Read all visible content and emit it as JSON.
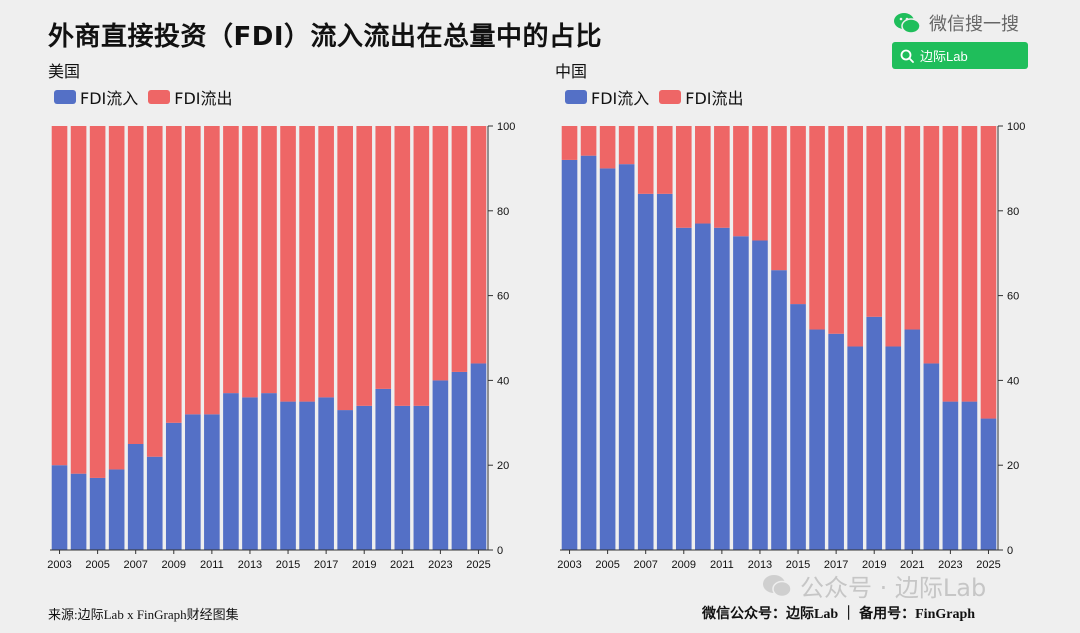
{
  "page": {
    "title": "外商直接投资（FDI）流入流出在总量中的占比",
    "wechat_label": "微信搜一搜",
    "search_label": "边际Lab",
    "watermark": "公众号 · 边际Lab",
    "footer_left": "来源:边际Lab x FinGraph财经图集",
    "footer_right": "微信公众号：边际Lab ｜ 备用号：FinGraph",
    "colors": {
      "inflow": "#5470c6",
      "outflow": "#ee6666"
    },
    "icons": [
      "wechat-icon",
      "search-icon",
      "watermark-logo-icon"
    ]
  },
  "chart_data": [
    {
      "type": "bar",
      "stacked": true,
      "title": "美国",
      "categories": [
        "2003",
        "2004",
        "2005",
        "2006",
        "2007",
        "2008",
        "2009",
        "2010",
        "2011",
        "2012",
        "2013",
        "2014",
        "2015",
        "2016",
        "2017",
        "2018",
        "2019",
        "2020",
        "2021",
        "2022",
        "2023",
        "2024",
        "2025"
      ],
      "x_tick_labels": [
        "2003",
        "2005",
        "2007",
        "2009",
        "2011",
        "2013",
        "2015",
        "2017",
        "2019",
        "2021",
        "2023",
        "2025"
      ],
      "series": [
        {
          "name": "FDI流入",
          "color": "#5470c6",
          "values": [
            20,
            18,
            17,
            19,
            25,
            22,
            30,
            32,
            32,
            37,
            36,
            37,
            35,
            35,
            36,
            33,
            34,
            38,
            34,
            34,
            40,
            42,
            44
          ]
        },
        {
          "name": "FDI流出",
          "color": "#ee6666",
          "values": [
            80,
            82,
            83,
            81,
            75,
            78,
            70,
            68,
            68,
            63,
            64,
            63,
            65,
            65,
            64,
            67,
            66,
            62,
            66,
            66,
            60,
            58,
            56
          ]
        }
      ],
      "ylim": [
        0,
        100
      ],
      "y_ticks": [
        0,
        20,
        40,
        60,
        80,
        100
      ],
      "y_axis_side": "right",
      "legend": "top-left"
    },
    {
      "type": "bar",
      "stacked": true,
      "title": "中国",
      "categories": [
        "2003",
        "2004",
        "2005",
        "2006",
        "2007",
        "2008",
        "2009",
        "2010",
        "2011",
        "2012",
        "2013",
        "2014",
        "2015",
        "2016",
        "2017",
        "2018",
        "2019",
        "2020",
        "2021",
        "2022",
        "2023",
        "2024",
        "2025"
      ],
      "x_tick_labels": [
        "2003",
        "2005",
        "2007",
        "2009",
        "2011",
        "2013",
        "2015",
        "2017",
        "2019",
        "2021",
        "2023",
        "2025"
      ],
      "series": [
        {
          "name": "FDI流入",
          "color": "#5470c6",
          "values": [
            92,
            93,
            90,
            91,
            84,
            84,
            76,
            77,
            76,
            74,
            73,
            66,
            58,
            52,
            51,
            48,
            55,
            48,
            52,
            44,
            35,
            35,
            31
          ]
        },
        {
          "name": "FDI流出",
          "color": "#ee6666",
          "values": [
            8,
            7,
            10,
            9,
            16,
            16,
            24,
            23,
            24,
            26,
            27,
            34,
            42,
            48,
            49,
            52,
            45,
            52,
            48,
            56,
            65,
            65,
            69
          ]
        }
      ],
      "ylim": [
        0,
        100
      ],
      "y_ticks": [
        0,
        20,
        40,
        60,
        80,
        100
      ],
      "y_axis_side": "right",
      "legend": "top-left"
    }
  ]
}
